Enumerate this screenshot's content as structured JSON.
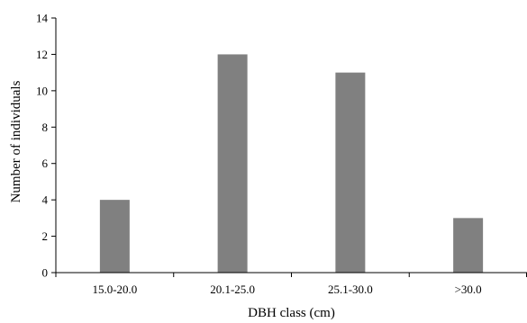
{
  "chart_data": {
    "type": "bar",
    "title": "",
    "xlabel": "DBH class (cm)",
    "ylabel": "Number of individuals",
    "categories": [
      "15.0-20.0",
      "20.1-25.0",
      "25.1-30.0",
      ">30.0"
    ],
    "values": [
      4,
      12,
      11,
      3
    ],
    "ylim": [
      0,
      14
    ],
    "yticks": [
      0,
      2,
      4,
      6,
      8,
      10,
      12,
      14
    ],
    "grid": false,
    "legend": "none",
    "bar_color": "#808080"
  }
}
